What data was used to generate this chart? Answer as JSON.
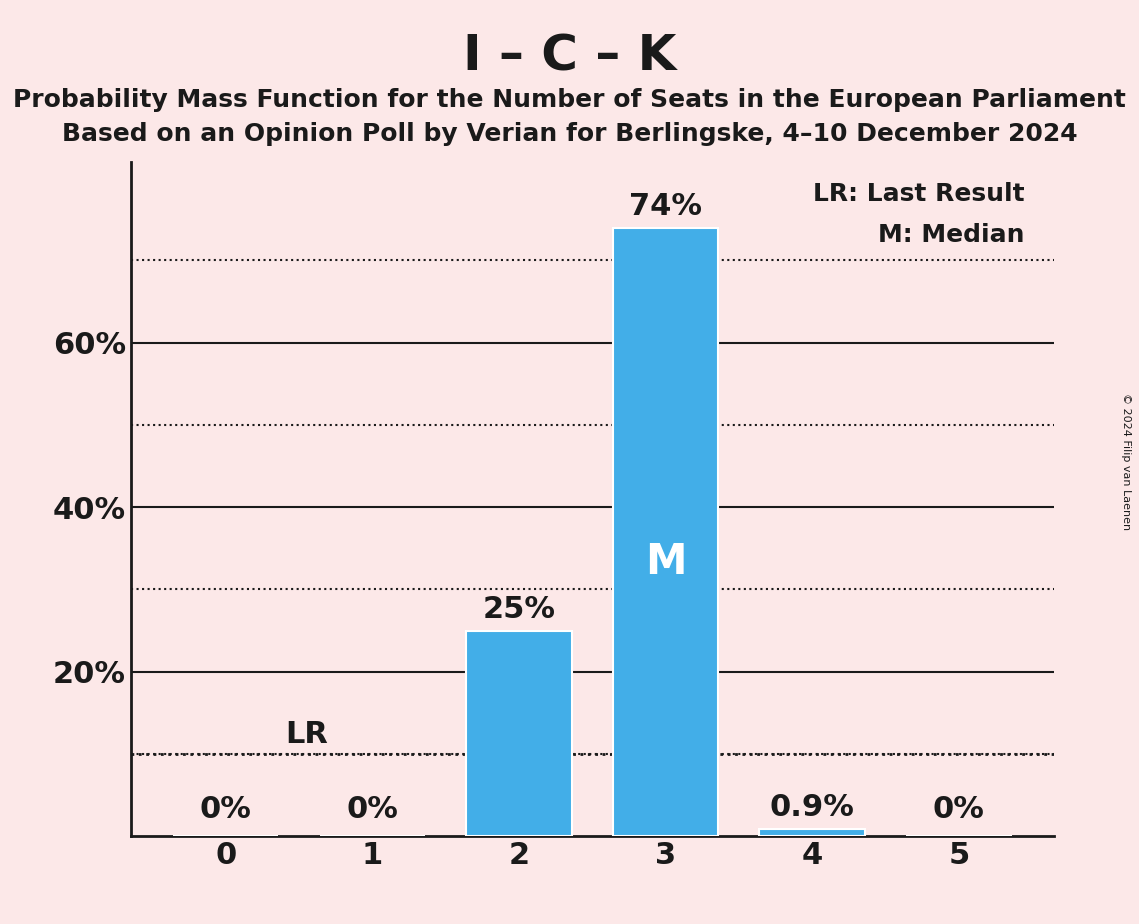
{
  "title": "I – C – K",
  "subtitle1": "Probability Mass Function for the Number of Seats in the European Parliament",
  "subtitle2": "Based on an Opinion Poll by Verian for Berlingske, 4–10 December 2024",
  "copyright": "© 2024 Filip van Laenen",
  "categories": [
    0,
    1,
    2,
    3,
    4,
    5
  ],
  "values": [
    0.0,
    0.0,
    0.25,
    0.74,
    0.009,
    0.0
  ],
  "bar_color": "#42aee8",
  "background_color": "#fce8e8",
  "bar_labels": [
    "0%",
    "0%",
    "25%",
    "74%",
    "0.9%",
    "0%"
  ],
  "ylim": [
    0,
    0.82
  ],
  "yticks_major": [
    0.0,
    0.2,
    0.4,
    0.6
  ],
  "ytick_labels_major": [
    "",
    "20%",
    "40%",
    "60%"
  ],
  "yticks_minor": [
    0.1,
    0.3,
    0.5,
    0.7
  ],
  "lr_value": 0.1,
  "lr_label": "LR",
  "median_bar_index": 3,
  "median_label": "M",
  "legend_lr": "LR: Last Result",
  "legend_m": "M: Median",
  "title_fontsize": 36,
  "subtitle_fontsize": 18,
  "bar_label_fontsize": 22,
  "axis_fontsize": 22,
  "legend_fontsize": 18,
  "median_label_fontsize": 30,
  "lr_label_fontsize": 22,
  "grid_color": "#1a1a1a",
  "text_color": "#1a1a1a",
  "bar_width": 0.72,
  "spine_color": "#1a1a1a"
}
